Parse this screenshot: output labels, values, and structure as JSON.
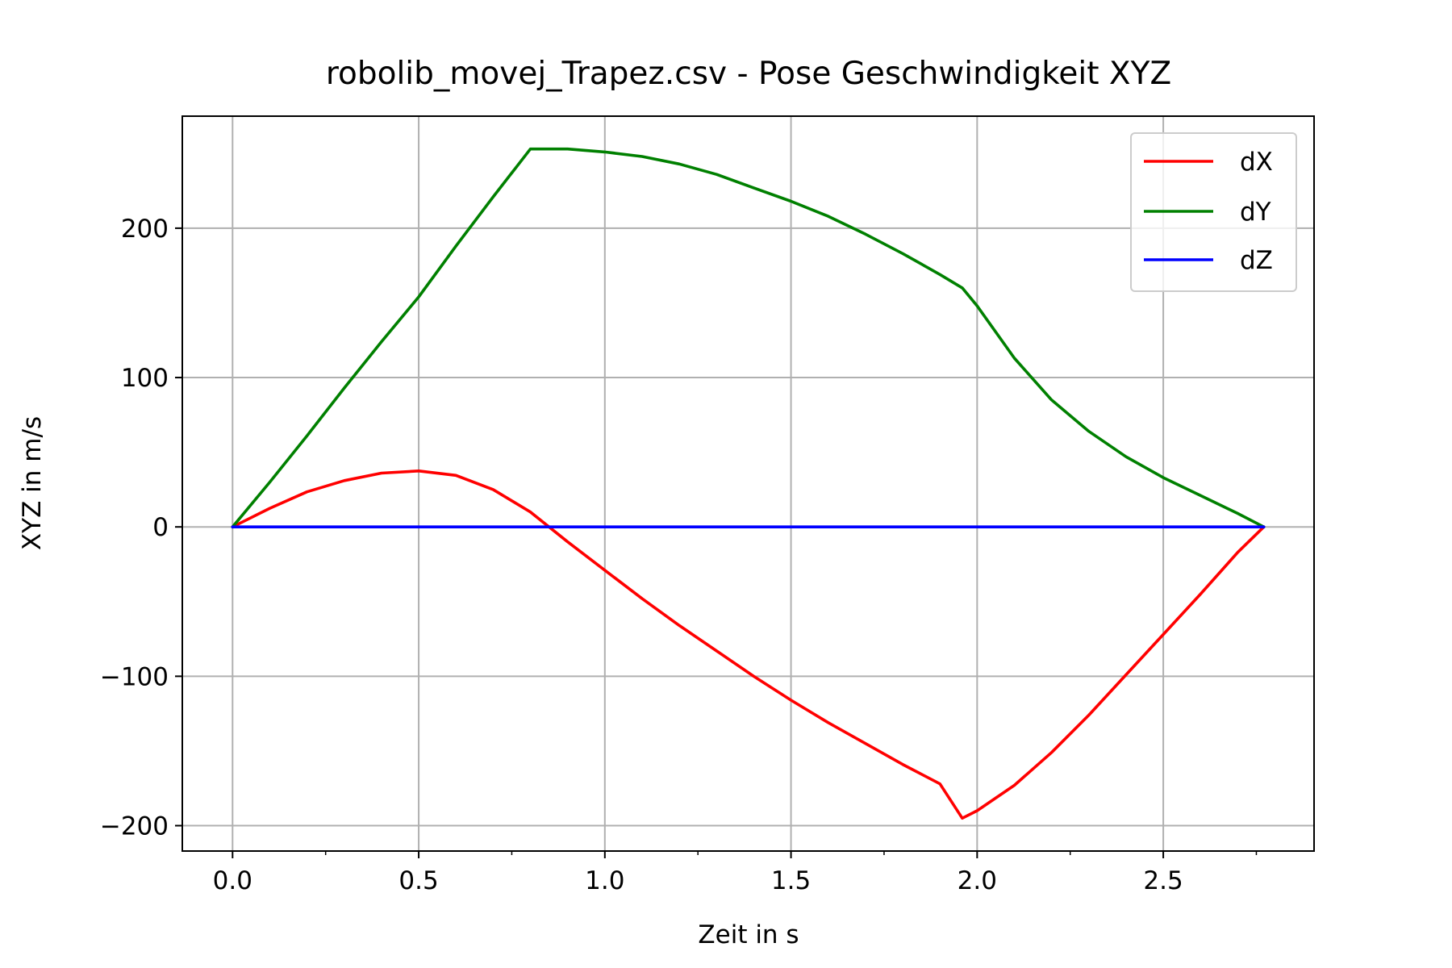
{
  "chart_data": {
    "type": "line",
    "title": "robolib_movej_Trapez.csv - Pose Geschwindigkeit XYZ",
    "xlabel": "Zeit in s",
    "ylabel": "XYZ in m/s",
    "xlim": [
      -0.135,
      2.905
    ],
    "ylim": [
      -217,
      275
    ],
    "grid": true,
    "legend_position": "top-right",
    "x_ticks": [
      {
        "value": 0.0,
        "label": "0.0"
      },
      {
        "value": 0.5,
        "label": "0.5"
      },
      {
        "value": 1.0,
        "label": "1.0"
      },
      {
        "value": 1.5,
        "label": "1.5"
      },
      {
        "value": 2.0,
        "label": "2.0"
      },
      {
        "value": 2.5,
        "label": "2.5"
      }
    ],
    "x_minor_ticks": [
      0.25,
      0.75,
      1.25,
      1.75,
      2.25,
      2.75
    ],
    "y_ticks": [
      {
        "value": -200,
        "label": "−200"
      },
      {
        "value": -100,
        "label": "−100"
      },
      {
        "value": 0,
        "label": "0"
      },
      {
        "value": 100,
        "label": "100"
      },
      {
        "value": 200,
        "label": "200"
      }
    ],
    "series": [
      {
        "name": "dX",
        "color": "#ff0000",
        "x": [
          0.0,
          0.1,
          0.2,
          0.3,
          0.4,
          0.5,
          0.6,
          0.7,
          0.8,
          0.85,
          0.9,
          1.0,
          1.1,
          1.2,
          1.3,
          1.4,
          1.5,
          1.6,
          1.7,
          1.8,
          1.9,
          1.96,
          2.0,
          2.1,
          2.2,
          2.3,
          2.4,
          2.5,
          2.6,
          2.7,
          2.77
        ],
        "values": [
          0,
          12.5,
          23.5,
          31,
          36,
          37.5,
          34.5,
          25,
          10,
          0,
          -10,
          -29,
          -48,
          -66,
          -83,
          -100,
          -116,
          -131,
          -145,
          -159,
          -172,
          -195,
          -190,
          -173,
          -151,
          -126,
          -99,
          -72,
          -45,
          -17,
          0
        ]
      },
      {
        "name": "dY",
        "color": "#008000",
        "x": [
          0.0,
          0.1,
          0.2,
          0.3,
          0.4,
          0.5,
          0.6,
          0.7,
          0.8,
          0.9,
          1.0,
          1.1,
          1.2,
          1.3,
          1.4,
          1.5,
          1.6,
          1.7,
          1.8,
          1.9,
          1.96,
          2.0,
          2.1,
          2.2,
          2.3,
          2.4,
          2.5,
          2.6,
          2.7,
          2.77
        ],
        "values": [
          0,
          30,
          61,
          93,
          124,
          154,
          188,
          221,
          253,
          253,
          251,
          248,
          243,
          236,
          227,
          218,
          208,
          196,
          183,
          169,
          160,
          148,
          113,
          85,
          64,
          47,
          33,
          21,
          9,
          0
        ]
      },
      {
        "name": "dZ",
        "color": "#0000ff",
        "x": [
          0.0,
          2.77
        ],
        "values": [
          0,
          0
        ]
      }
    ]
  }
}
